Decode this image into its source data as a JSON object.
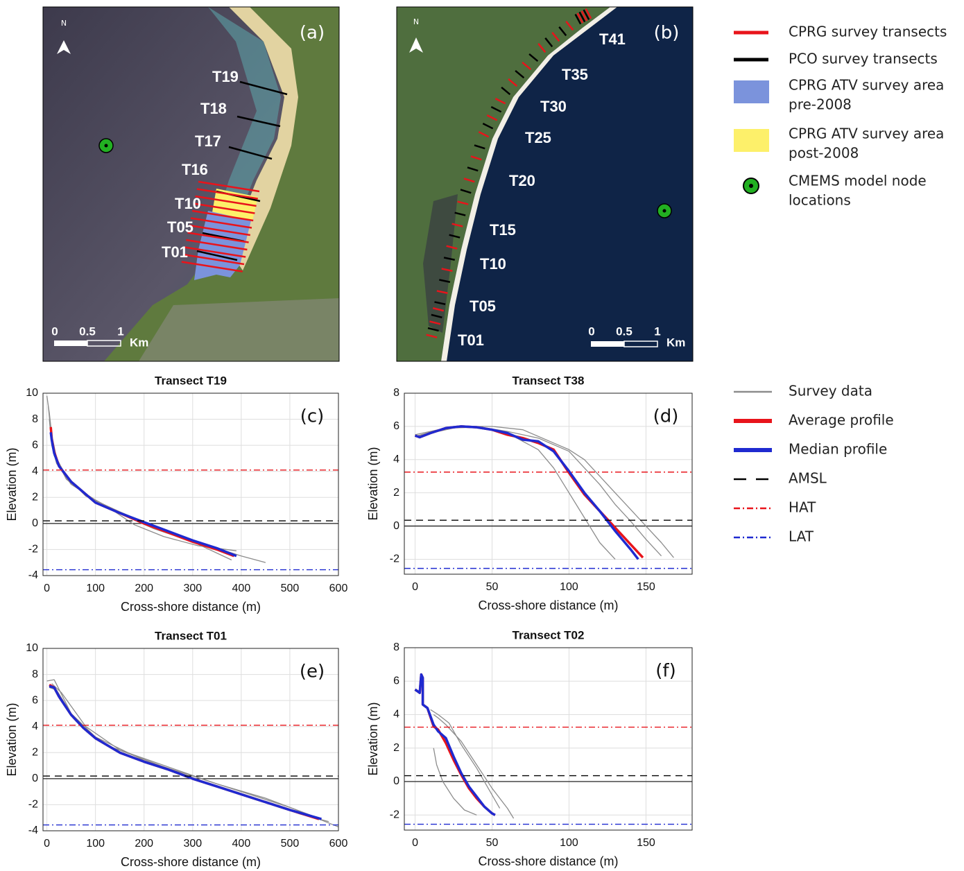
{
  "maps": [
    {
      "panel_label": "(a)",
      "north": "N",
      "labels": [
        "T19",
        "T18",
        "T17",
        "T16",
        "T10",
        "T05",
        "T01"
      ],
      "scale": [
        "0",
        "0.5",
        "1",
        "Km"
      ]
    },
    {
      "panel_label": "(b)",
      "north": "N",
      "labels": [
        "T41",
        "T35",
        "T30",
        "T25",
        "T20",
        "T15",
        "T10",
        "T05",
        "T01"
      ],
      "scale": [
        "0",
        "0.5",
        "1",
        "Km"
      ]
    }
  ],
  "map_legend": [
    {
      "label": [
        "CPRG survey transects"
      ],
      "kind": "line",
      "color": "#e8141b"
    },
    {
      "label": [
        "PCO survey transects"
      ],
      "kind": "line",
      "color": "#000000"
    },
    {
      "label": [
        "CPRG ATV survey area",
        "pre-2008"
      ],
      "kind": "area",
      "color": "#7b93dc"
    },
    {
      "label": [
        "CPRG ATV survey area",
        "post-2008"
      ],
      "kind": "area",
      "color": "#fdf06a"
    },
    {
      "label": [
        "CMEMS model node",
        "locations"
      ],
      "kind": "node",
      "color": "#22b022"
    }
  ],
  "chart_data": [
    {
      "type": "line",
      "title": "Transect T19",
      "panel_label": "(c)",
      "x_label": "Cross-shore distance (m)",
      "y_label": "Elevation (m)",
      "xlim": [
        -8,
        600
      ],
      "ylim": [
        -4,
        10
      ],
      "xticks": [
        0,
        100,
        200,
        300,
        400,
        500,
        600
      ],
      "yticks": [
        -4,
        -2,
        0,
        2,
        4,
        6,
        8,
        10
      ],
      "grid": true,
      "series": [
        {
          "name": "Survey data",
          "color": "#8c8c8c",
          "style": "solid",
          "lines": [
            {
              "x": [
                0,
                5,
                10,
                20,
                40,
                80,
                150,
                200,
                280,
                350,
                400,
                450
              ],
              "values": [
                9.8,
                8.5,
                6.8,
                5.0,
                3.6,
                2.1,
                0.9,
                0.1,
                -1.0,
                -1.9,
                -2.5,
                -3.0
              ]
            },
            {
              "x": [
                5,
                10,
                20,
                50,
                100,
                160,
                220,
                300,
                380
              ],
              "values": [
                8.0,
                6.0,
                4.6,
                3.0,
                1.8,
                0.6,
                -0.4,
                -1.4,
                -2.8
              ]
            },
            {
              "x": [
                3,
                8,
                15,
                40,
                90,
                140,
                180,
                240,
                310,
                390
              ],
              "values": [
                9.0,
                7.0,
                5.2,
                3.4,
                1.9,
                0.9,
                -0.1,
                -1.0,
                -1.7,
                -2.1
              ]
            }
          ]
        },
        {
          "name": "Average profile",
          "color": "#e8141b",
          "style": "thick",
          "x": [
            8,
            10,
            15,
            25,
            50,
            100,
            150,
            200,
            250,
            300,
            350,
            385
          ],
          "values": [
            7.4,
            6.5,
            5.5,
            4.4,
            3.2,
            1.6,
            0.8,
            0.0,
            -0.7,
            -1.4,
            -2.0,
            -2.5
          ]
        },
        {
          "name": "Median profile",
          "color": "#1f2ad0",
          "style": "thick",
          "x": [
            8,
            10,
            15,
            25,
            50,
            100,
            150,
            200,
            250,
            300,
            350,
            390
          ],
          "values": [
            7.0,
            6.4,
            5.4,
            4.4,
            3.2,
            1.6,
            0.8,
            0.1,
            -0.6,
            -1.3,
            -1.9,
            -2.5
          ]
        },
        {
          "name": "AMSL",
          "color": "#000000",
          "style": "dashed",
          "value": 0.2
        },
        {
          "name": "HAT",
          "color": "#e8141b",
          "style": "dashdot",
          "value": 4.1
        },
        {
          "name": "LAT",
          "color": "#1f2ad0",
          "style": "dashdot",
          "value": -3.55
        }
      ]
    },
    {
      "type": "line",
      "title": "Transect T38",
      "panel_label": "(d)",
      "x_label": "Cross-shore distance (m)",
      "y_label": "Elevation (m)",
      "xlim": [
        -7,
        180
      ],
      "ylim": [
        -2.9,
        8
      ],
      "xticks": [
        0,
        50,
        100,
        150
      ],
      "yticks": [
        -2,
        0,
        2,
        4,
        6,
        8
      ],
      "grid": true,
      "series": [
        {
          "name": "Survey data",
          "color": "#8c8c8c",
          "style": "solid",
          "lines": [
            {
              "x": [
                0,
                10,
                30,
                50,
                70,
                90,
                100,
                110,
                120,
                130,
                140,
                150,
                160,
                168
              ],
              "values": [
                5.4,
                5.6,
                6.0,
                6.0,
                5.8,
                5.0,
                4.6,
                4.0,
                3.0,
                2.0,
                1.0,
                0.0,
                -1.0,
                -1.9
              ]
            },
            {
              "x": [
                0,
                20,
                40,
                60,
                80,
                90,
                100,
                110,
                120,
                130
              ],
              "values": [
                5.5,
                5.9,
                5.95,
                5.6,
                4.6,
                3.5,
                2.0,
                0.5,
                -1.0,
                -2.0
              ]
            },
            {
              "x": [
                0,
                20,
                40,
                60,
                80,
                100,
                110,
                120,
                130,
                140,
                150,
                160
              ],
              "values": [
                5.4,
                5.9,
                6.0,
                5.7,
                5.3,
                4.5,
                3.5,
                2.5,
                1.3,
                0.3,
                -0.8,
                -1.8
              ]
            }
          ]
        },
        {
          "name": "Average profile",
          "color": "#e8141b",
          "style": "thick",
          "x": [
            0,
            3,
            10,
            20,
            30,
            40,
            50,
            60,
            70,
            80,
            90,
            100,
            110,
            120,
            130,
            140,
            148
          ],
          "values": [
            5.45,
            5.35,
            5.6,
            5.9,
            6.0,
            5.95,
            5.8,
            5.5,
            5.3,
            5.0,
            4.6,
            3.2,
            1.9,
            0.9,
            -0.1,
            -1.1,
            -1.9
          ]
        },
        {
          "name": "Median profile",
          "color": "#1f2ad0",
          "style": "thick",
          "x": [
            0,
            3,
            10,
            20,
            30,
            40,
            50,
            60,
            70,
            80,
            90,
            100,
            110,
            120,
            130,
            140,
            145
          ],
          "values": [
            5.45,
            5.35,
            5.6,
            5.9,
            6.0,
            5.95,
            5.8,
            5.6,
            5.2,
            5.1,
            4.5,
            3.3,
            2.0,
            0.9,
            -0.3,
            -1.4,
            -2.0
          ]
        },
        {
          "name": "AMSL",
          "color": "#000000",
          "style": "dashed",
          "value": 0.35
        },
        {
          "name": "HAT",
          "color": "#e8141b",
          "style": "dashdot",
          "value": 3.25
        },
        {
          "name": "LAT",
          "color": "#1f2ad0",
          "style": "dashdot",
          "value": -2.55
        }
      ]
    },
    {
      "type": "line",
      "title": "Transect T01",
      "panel_label": "(e)",
      "x_label": "Cross-shore distance (m)",
      "y_label": "Elevation (m)",
      "xlim": [
        -8,
        600
      ],
      "ylim": [
        -4,
        10
      ],
      "xticks": [
        0,
        100,
        200,
        300,
        400,
        500,
        600
      ],
      "yticks": [
        -4,
        -2,
        0,
        2,
        4,
        6,
        8,
        10
      ],
      "grid": true,
      "series": [
        {
          "name": "Survey data",
          "color": "#8c8c8c",
          "style": "solid",
          "lines": [
            {
              "x": [
                0,
                15,
                50,
                100,
                200,
                300,
                400,
                500,
                600
              ],
              "values": [
                7.5,
                7.6,
                5.0,
                3.2,
                1.4,
                0.2,
                -1.0,
                -2.2,
                -3.7
              ]
            },
            {
              "x": [
                5,
                20,
                60,
                120,
                220,
                320,
                420,
                520,
                580
              ],
              "values": [
                7.0,
                6.8,
                4.4,
                2.6,
                1.2,
                -0.2,
                -1.4,
                -2.7,
                -3.3
              ]
            },
            {
              "x": [
                10,
                30,
                80,
                150,
                250,
                350,
                450,
                550
              ],
              "values": [
                7.3,
                6.6,
                4.0,
                2.2,
                0.9,
                -0.4,
                -1.5,
                -2.9
              ]
            }
          ]
        },
        {
          "name": "Average profile",
          "color": "#e8141b",
          "style": "thick",
          "x": [
            5,
            15,
            25,
            50,
            75,
            100,
            150,
            200,
            250,
            300,
            350,
            400,
            450,
            500,
            560
          ],
          "values": [
            7.2,
            7.0,
            6.3,
            4.9,
            3.9,
            3.1,
            2.0,
            1.3,
            0.7,
            0.0,
            -0.6,
            -1.2,
            -1.8,
            -2.4,
            -3.1
          ]
        },
        {
          "name": "Median profile",
          "color": "#1f2ad0",
          "style": "thick",
          "x": [
            5,
            15,
            25,
            50,
            75,
            100,
            150,
            200,
            250,
            300,
            350,
            400,
            450,
            500,
            565
          ],
          "values": [
            7.1,
            7.0,
            6.3,
            4.9,
            3.9,
            3.1,
            2.0,
            1.3,
            0.7,
            0.0,
            -0.6,
            -1.2,
            -1.8,
            -2.4,
            -3.1
          ]
        },
        {
          "name": "AMSL",
          "color": "#000000",
          "style": "dashed",
          "value": 0.2
        },
        {
          "name": "HAT",
          "color": "#e8141b",
          "style": "dashdot",
          "value": 4.1
        },
        {
          "name": "LAT",
          "color": "#1f2ad0",
          "style": "dashdot",
          "value": -3.55
        }
      ]
    },
    {
      "type": "line",
      "title": "Transect T02",
      "panel_label": "(f)",
      "x_label": "Cross-shore distance (m)",
      "y_label": "Elevation (m)",
      "xlim": [
        -7,
        180
      ],
      "ylim": [
        -2.9,
        8
      ],
      "xticks": [
        0,
        50,
        100,
        150
      ],
      "yticks": [
        -2,
        0,
        2,
        4,
        6,
        8
      ],
      "grid": true,
      "series": [
        {
          "name": "Survey data",
          "color": "#8c8c8c",
          "style": "solid",
          "lines": [
            {
              "x": [
                12,
                15,
                20,
                30,
                40,
                50,
                60,
                64
              ],
              "values": [
                4.0,
                3.8,
                3.4,
                2.4,
                1.0,
                -0.4,
                -1.6,
                -2.2
              ]
            },
            {
              "x": [
                12,
                14,
                18,
                25,
                32,
                40
              ],
              "values": [
                2.0,
                1.0,
                0.0,
                -1.0,
                -1.7,
                -2.0
              ]
            },
            {
              "x": [
                10,
                15,
                22,
                30,
                40,
                50,
                55
              ],
              "values": [
                4.3,
                4.0,
                3.5,
                2.2,
                0.8,
                -0.8,
                -1.6
              ]
            }
          ]
        },
        {
          "name": "Average profile",
          "color": "#e8141b",
          "style": "thick",
          "x": [
            0,
            3,
            4,
            5,
            5,
            8,
            12,
            15,
            20,
            25,
            30,
            35,
            40,
            45,
            50,
            52
          ],
          "values": [
            5.5,
            5.3,
            6.4,
            6.2,
            4.6,
            4.4,
            3.3,
            3.1,
            2.3,
            1.3,
            0.4,
            -0.4,
            -1.0,
            -1.5,
            -1.9,
            -2.0
          ]
        },
        {
          "name": "Median profile",
          "color": "#1f2ad0",
          "style": "thick",
          "x": [
            0,
            3,
            4,
            5,
            5,
            8,
            12,
            15,
            20,
            25,
            30,
            35,
            40,
            45,
            50,
            52
          ],
          "values": [
            5.5,
            5.3,
            6.4,
            6.2,
            4.6,
            4.4,
            3.4,
            3.0,
            2.6,
            1.5,
            0.5,
            -0.3,
            -0.9,
            -1.5,
            -1.9,
            -2.0
          ]
        },
        {
          "name": "AMSL",
          "color": "#000000",
          "style": "dashed",
          "value": 0.35
        },
        {
          "name": "HAT",
          "color": "#e8141b",
          "style": "dashdot",
          "value": 3.25
        },
        {
          "name": "LAT",
          "color": "#1f2ad0",
          "style": "dashdot",
          "value": -2.55
        }
      ]
    }
  ]
}
